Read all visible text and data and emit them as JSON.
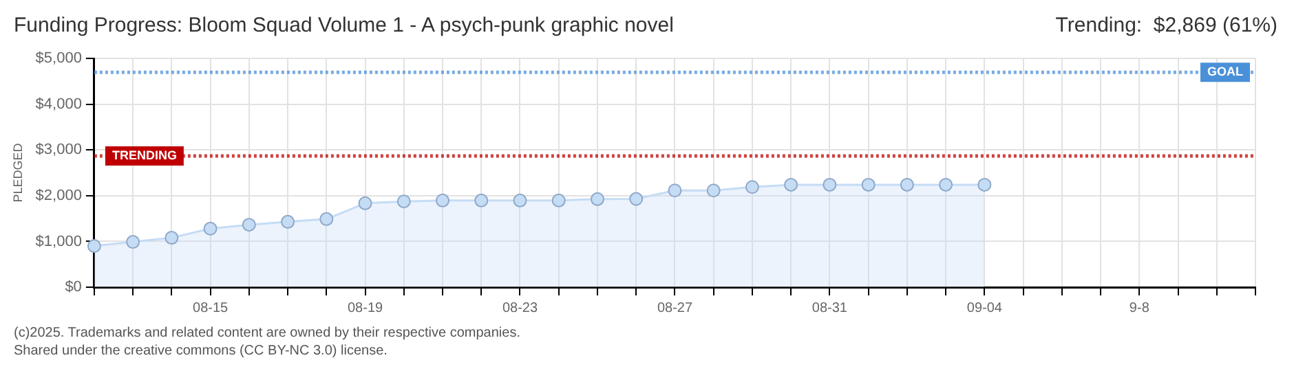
{
  "chart_data": {
    "type": "area",
    "title": "Funding Progress: Bloom Squad Volume 1 - A psych-punk graphic novel",
    "subtitle": "Trending:  $2,869 (61%)",
    "ylabel": "PLEDGED",
    "categories": [
      null,
      null,
      null,
      "08-15",
      null,
      null,
      null,
      "08-19",
      null,
      null,
      null,
      "08-23",
      null,
      null,
      null,
      "08-27",
      null,
      null,
      null,
      "08-31",
      null,
      null,
      null,
      "09-04",
      null,
      null,
      null,
      "9-8",
      null,
      null,
      null
    ],
    "series": [
      {
        "color": "#c5dcf5",
        "values": [
          900,
          990,
          1080,
          1280,
          1365,
          1430,
          1490,
          1835,
          1875,
          1895,
          1895,
          1895,
          1895,
          1925,
          1930,
          2115,
          2115,
          2190,
          2240,
          2240,
          2240,
          2240,
          2240,
          2240,
          null,
          null,
          null,
          null,
          null,
          null,
          null
        ]
      }
    ],
    "ylim": [
      0,
      5000
    ],
    "yticks": [
      {
        "value": 0,
        "label": "$0"
      },
      {
        "value": 1000,
        "label": "$1,000"
      },
      {
        "value": 2000,
        "label": "$2,000"
      },
      {
        "value": 3000,
        "label": "$3,000"
      },
      {
        "value": 4000,
        "label": "$4,000"
      },
      {
        "value": 5000,
        "label": "$5,000"
      }
    ],
    "ref_lines": [
      {
        "axis": "y",
        "value": 4700,
        "label": "GOAL",
        "color": "#4a90d9",
        "line_style": "dotted"
      },
      {
        "axis": "y",
        "value": 2869,
        "label": "TRENDING",
        "color": "#c00000",
        "line_style": "dotted"
      }
    ],
    "annotations": [
      "(c)2025. Trademarks and related content are owned by their respective companies.",
      "Shared under the creative commons (CC BY-NC 3.0) license."
    ],
    "grid": true,
    "marker": "circle",
    "line_style": "solid",
    "legend": false
  }
}
